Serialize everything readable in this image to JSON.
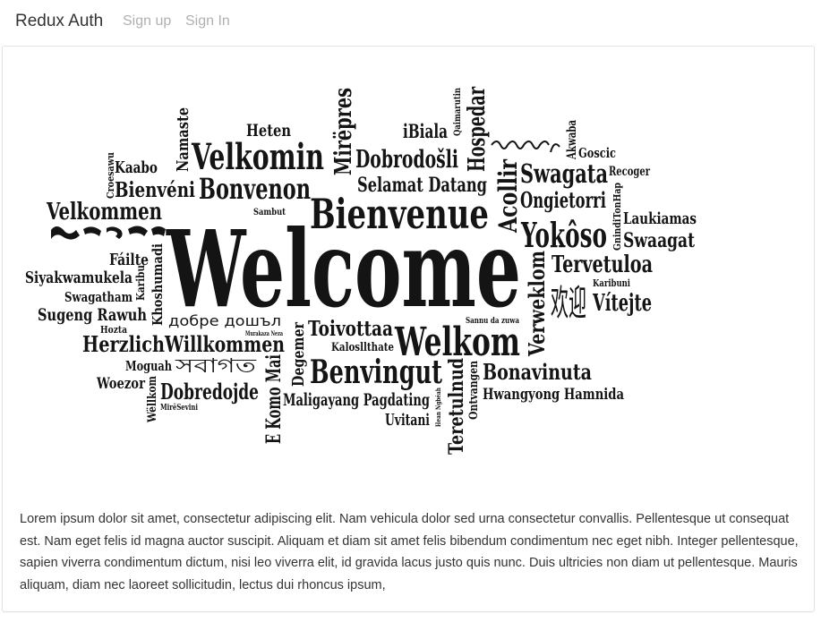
{
  "navbar": {
    "brand": "Redux Auth",
    "links": [
      {
        "label": "Sign up"
      },
      {
        "label": "Sign In"
      }
    ]
  },
  "welcome_image": {
    "words": [
      "Welcome",
      "Bienvenue",
      "Welkom",
      "Benvingut",
      "Velkomin",
      "Bonvenon",
      "Mirëpres",
      "Dobrodošli",
      "Hospedar",
      "Selamat Datang",
      "Swagata",
      "Ongietorri",
      "Yokôso",
      "Tervetuloa",
      "Swaagat",
      "Laukiamas",
      "Vítejte",
      "Karibuni",
      "Verweklom",
      "Velkommen",
      "Bienvéni",
      "Kaabo",
      "Namaste",
      "Heten",
      "iBiala",
      "Qaimarutin",
      "Akwaba",
      "Goscic",
      "Recoger",
      "GnindiTonHap",
      "Sambut",
      "Croesawu",
      "Fáilte",
      "Siyakwamukela",
      "Swagatham",
      "Sugeng Rawuh",
      "Hozta",
      "Karibu",
      "Khoshumadi",
      "добре дошъл",
      "Murakaza Neza",
      "Herzlich",
      "Willkommen",
      "Degemer",
      "Toivottaa",
      "Kalosllthate",
      "Sannu da zuwa",
      "Bonavinuta",
      "Hwangyong Hamnida",
      "Moguah",
      "Woezor",
      "Wëllkom",
      "MirëSevini",
      "Dobredojde",
      "E Komo Mai",
      "Maligayang Pagdating",
      "Uvitani",
      "Hean Ngbéah",
      "Teretulnud",
      "Ontvangen",
      "Acollir",
      "欢迎",
      "সবাগত"
    ]
  },
  "body_text": "Lorem ipsum dolor sit amet, consectetur adipiscing elit. Nam vehicula dolor sed urna consectetur convallis. Pellentesque ut consequat est. Nam eget felis id magna auctor suscipit. Aliquam et diam sit amet felis bibendum condimentum nec eget nibh. Integer pellentesque, sapien viverra condimentum dictum, nisi leo viverra elit, id gravida lacus justo quis nunc. Duis ultricies non diam ut pellentesque. Mauris aliquam, diam nec laoreet sollicitudin, lectus dui rhoncus ipsum,"
}
